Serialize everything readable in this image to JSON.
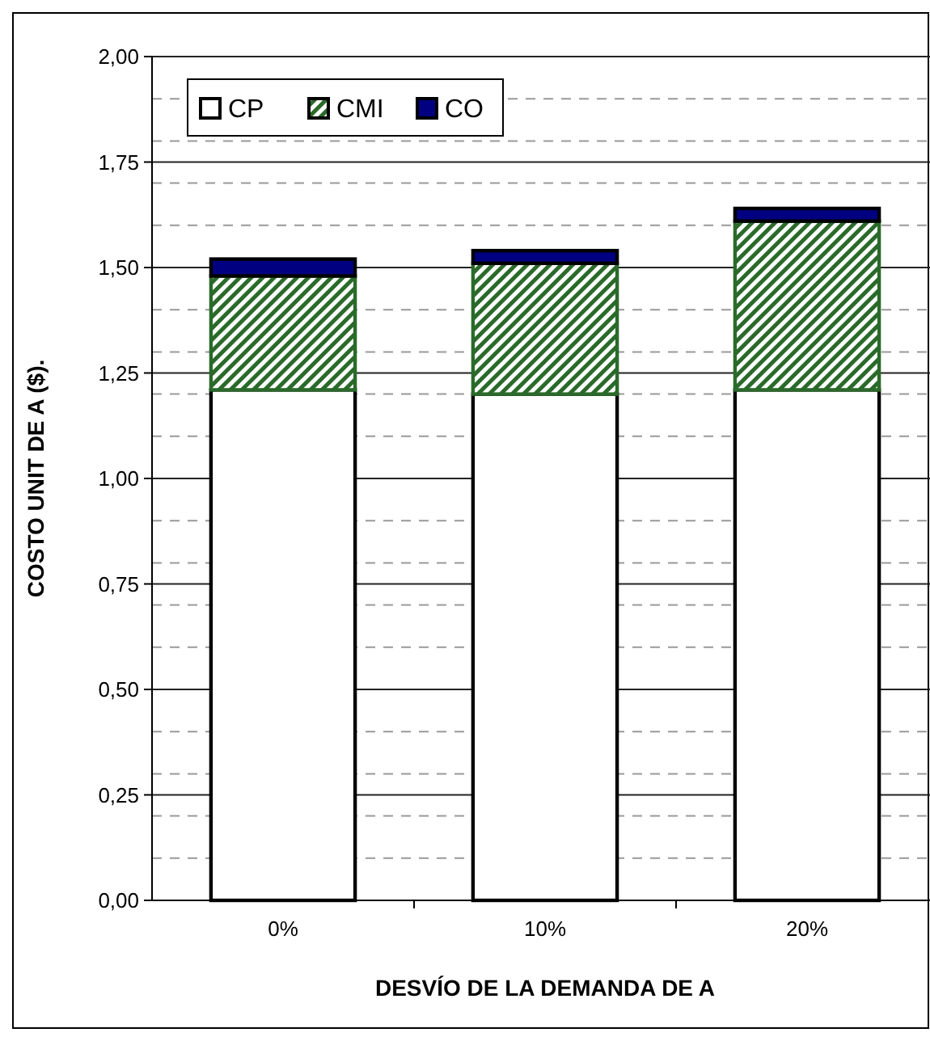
{
  "chart_data": {
    "type": "bar",
    "stacked": true,
    "xlabel": "DESVÍO DE LA DEMANDA DE A",
    "ylabel": "COSTO UNIT DE A ($).",
    "categories": [
      "0%",
      "10%",
      "20%"
    ],
    "series": [
      {
        "name": "CP",
        "color": "#ffffff",
        "values": [
          1.21,
          1.2,
          1.21
        ]
      },
      {
        "name": "CMI",
        "color": "#2a6a2a",
        "values": [
          0.27,
          0.31,
          0.4
        ]
      },
      {
        "name": "CO",
        "color": "#000080",
        "values": [
          0.04,
          0.03,
          0.03
        ]
      }
    ],
    "ylim": [
      0,
      2
    ],
    "yticks": [
      {
        "value": 0,
        "label": "0,00"
      },
      {
        "value": 0.1,
        "label": null
      },
      {
        "value": 0.2,
        "label": null
      },
      {
        "value": 0.25,
        "label": "0,25"
      },
      {
        "value": 0.3,
        "label": null
      },
      {
        "value": 0.4,
        "label": null
      },
      {
        "value": 0.5,
        "label": "0,50"
      },
      {
        "value": 0.6,
        "label": null
      },
      {
        "value": 0.7,
        "label": null
      },
      {
        "value": 0.75,
        "label": "0,75"
      },
      {
        "value": 0.8,
        "label": null
      },
      {
        "value": 0.9,
        "label": null
      },
      {
        "value": 1,
        "label": "1,00"
      },
      {
        "value": 1.1,
        "label": null
      },
      {
        "value": 1.2,
        "label": null
      },
      {
        "value": 1.25,
        "label": "1,25"
      },
      {
        "value": 1.3,
        "label": null
      },
      {
        "value": 1.4,
        "label": null
      },
      {
        "value": 1.5,
        "label": "1,50"
      },
      {
        "value": 1.6,
        "label": null
      },
      {
        "value": 1.7,
        "label": null
      },
      {
        "value": 1.75,
        "label": "1,75"
      },
      {
        "value": 1.8,
        "label": null
      },
      {
        "value": 1.9,
        "label": null
      },
      {
        "value": 2,
        "label": "2,00"
      }
    ],
    "grid": "y",
    "legend": "top left"
  }
}
